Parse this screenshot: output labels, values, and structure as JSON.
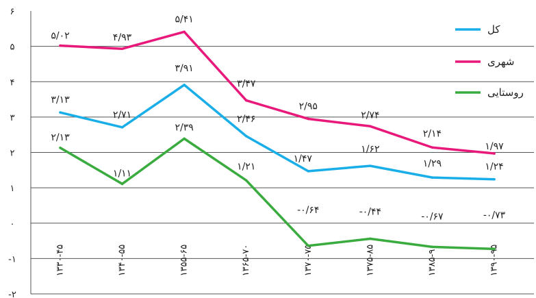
{
  "chart_data": {
    "type": "line",
    "categories": [
      "۱۳۳۰-۴۵",
      "۱۳۴۰-۵۵",
      "۱۳۵۵-۶۵",
      "۱۳۶۵-۷۰",
      "۱۳۷۰-۷۵",
      "۱۳۷۵-۸۵",
      "۱۳۸۵-۹۰",
      "۱۳۹۰-۹۵"
    ],
    "series": [
      {
        "name": "کل",
        "color": "#1aaee8",
        "values": [
          3.13,
          2.71,
          3.91,
          2.46,
          1.47,
          1.62,
          1.29,
          1.24
        ],
        "labels": [
          "۳/۱۳",
          "۲/۷۱",
          "۳/۹۱",
          "۲/۴۶",
          "۱/۴۷",
          "۱/۶۲",
          "۱/۲۹",
          "۱/۲۴"
        ]
      },
      {
        "name": "شهری",
        "color": "#e8197a",
        "values": [
          5.02,
          4.93,
          5.41,
          3.47,
          2.95,
          2.74,
          2.14,
          1.97
        ],
        "labels": [
          "۵/۰۲",
          "۴/۹۳",
          "۵/۴۱",
          "۳/۴۷",
          "۲/۹۵",
          "۲/۷۴",
          "۲/۱۴",
          "۱/۹۷"
        ]
      },
      {
        "name": "روستایی",
        "color": "#3aab3e",
        "values": [
          2.13,
          1.11,
          2.39,
          1.21,
          -0.64,
          -0.44,
          -0.67,
          -0.73
        ],
        "labels": [
          "۲/۱۳",
          "۱/۱۱",
          "۲/۳۹",
          "۱/۲۱",
          "-۰/۶۴",
          "-۰/۴۴",
          "-۰/۶۷",
          "-۰/۷۳"
        ]
      }
    ],
    "ylim": [
      -2,
      6
    ],
    "yticks": [
      -2,
      -1,
      0,
      1,
      2,
      3,
      4,
      5,
      6
    ],
    "ytick_labels": [
      "-۲",
      "-۱",
      "۰",
      "۱",
      "۲",
      "۳",
      "۴",
      "۵",
      "۶"
    ],
    "grid": true,
    "legend_position": "top-right",
    "title": "",
    "xlabel": "",
    "ylabel": ""
  }
}
